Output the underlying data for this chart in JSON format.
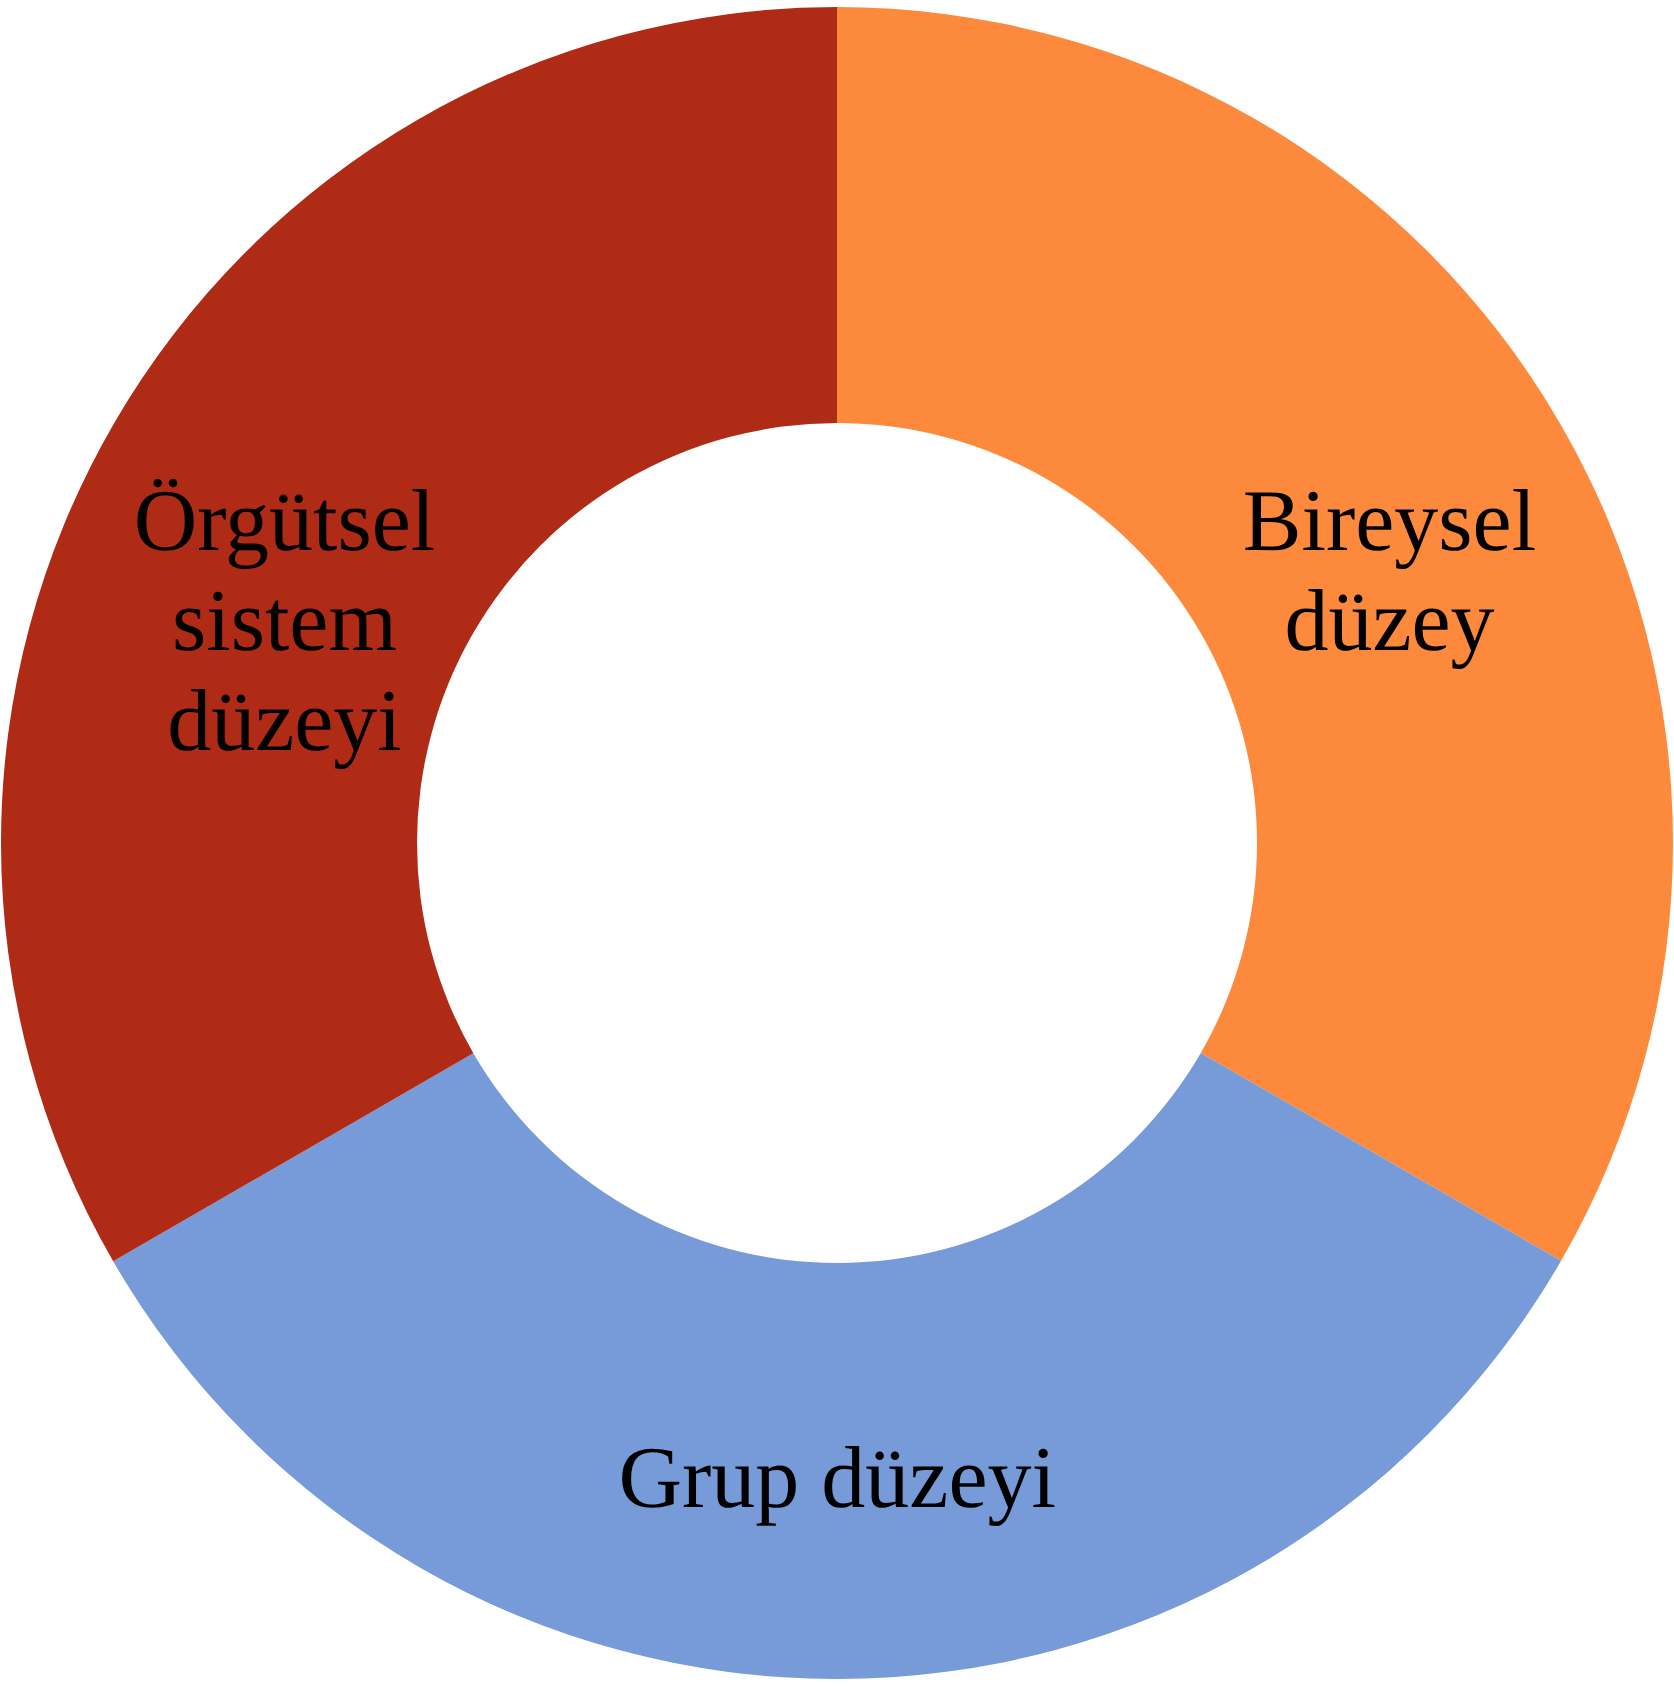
{
  "chart_data": {
    "type": "donut",
    "categories": [
      "Bireysel düzey",
      "Grup düzeyi",
      "Örgütsel sistem düzeyi"
    ],
    "values": [
      33.33,
      33.33,
      33.34
    ],
    "colors": [
      "#fd8a3c",
      "#779ad8",
      "#b02b16"
    ]
  }
}
